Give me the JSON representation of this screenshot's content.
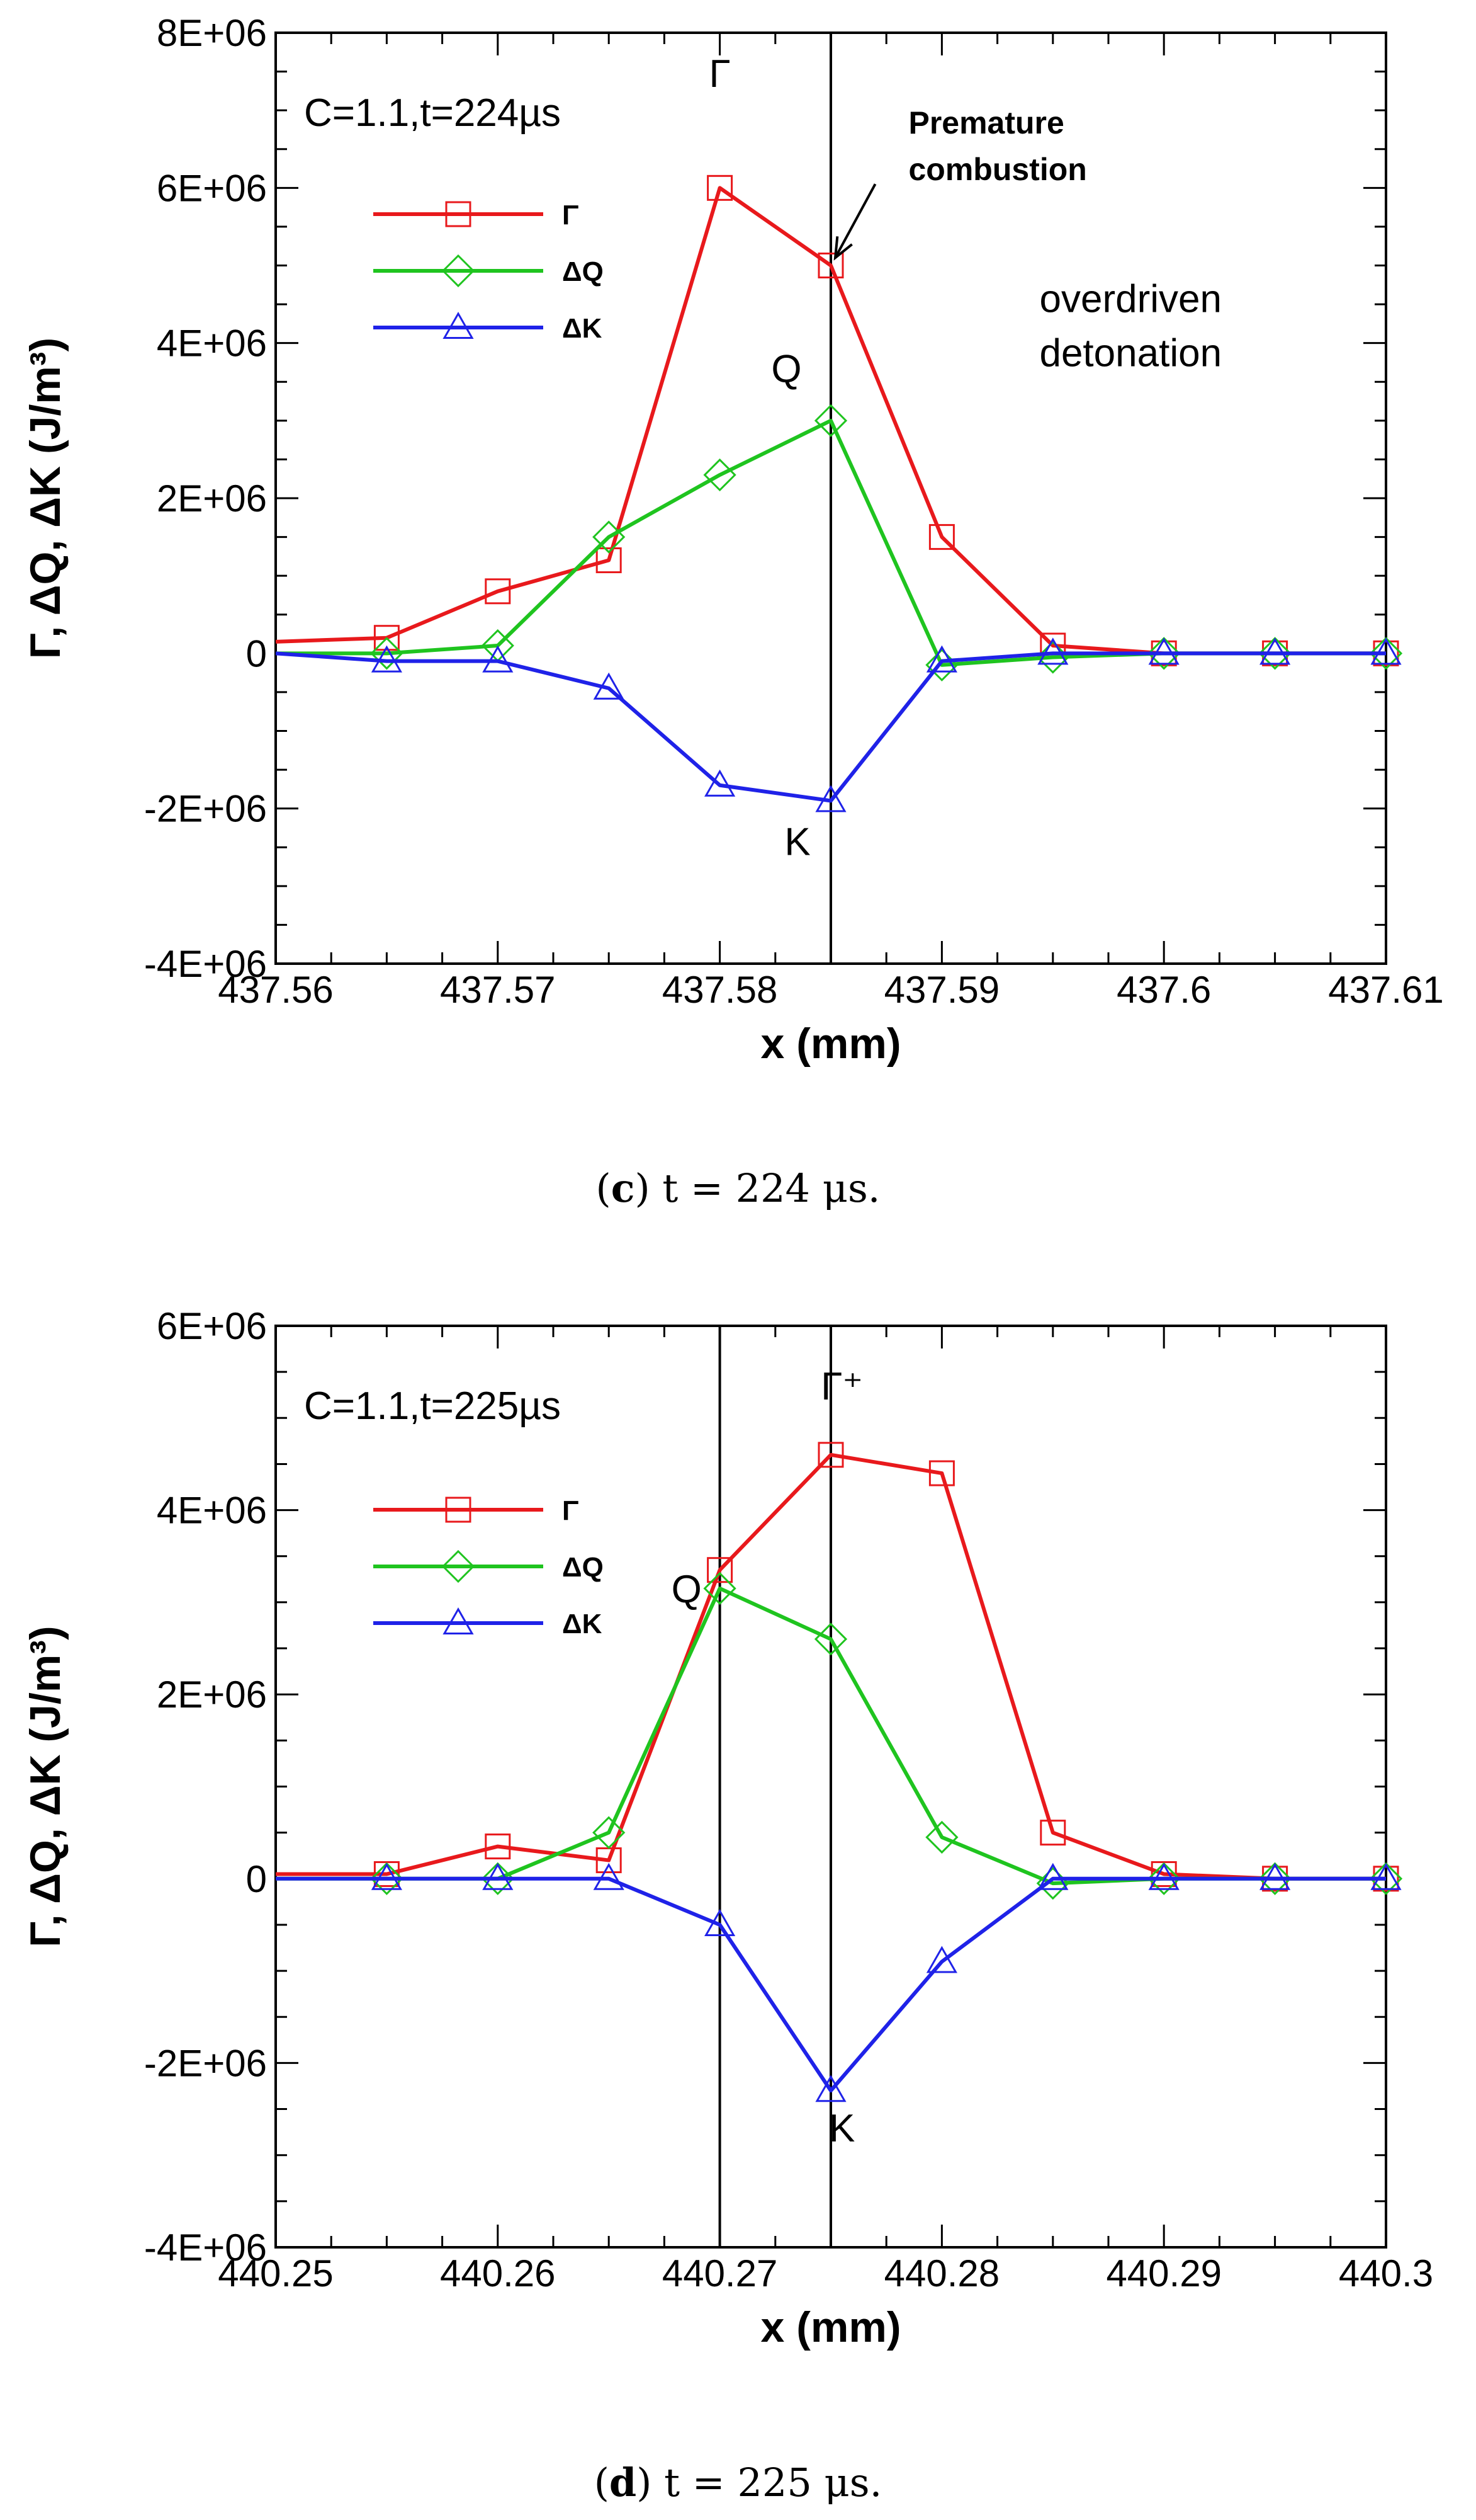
{
  "chart_data": [
    {
      "type": "line",
      "panel_id": "c",
      "title": "C=1.1,t=224µs",
      "xlabel": "x (mm)",
      "ylabel": "Γ, ΔQ, ΔK (J/m³)",
      "xlim": [
        437.56,
        437.61
      ],
      "ylim": [
        -4000000,
        8000000
      ],
      "x_ticks": [
        437.56,
        437.57,
        437.58,
        437.59,
        437.6,
        437.61
      ],
      "x_tick_labels": [
        "437.56",
        "437.57",
        "437.58",
        "437.59",
        "437.6",
        "437.61"
      ],
      "y_ticks": [
        -4000000,
        -2000000,
        0,
        2000000,
        4000000,
        6000000,
        8000000
      ],
      "y_tick_labels": [
        "-4E+06",
        "-2E+06",
        "0",
        "2E+06",
        "4E+06",
        "6E+06",
        "8E+06"
      ],
      "grid": false,
      "legend_position": "upper-left",
      "series": [
        {
          "name": "Γ",
          "color": "#e8191c",
          "marker": "square",
          "x": [
            437.56,
            437.565,
            437.57,
            437.575,
            437.58,
            437.585,
            437.59,
            437.595,
            437.6,
            437.605,
            437.61
          ],
          "values": [
            150000,
            200000,
            800000,
            1200000,
            6000000,
            5000000,
            1500000,
            100000,
            0,
            0,
            0
          ]
        },
        {
          "name": "ΔQ",
          "color": "#1fc41f",
          "marker": "diamond",
          "x": [
            437.56,
            437.565,
            437.57,
            437.575,
            437.58,
            437.585,
            437.59,
            437.595,
            437.6,
            437.605,
            437.61
          ],
          "values": [
            0,
            0,
            100000,
            1500000,
            2300000,
            3000000,
            -150000,
            -50000,
            0,
            0,
            0
          ]
        },
        {
          "name": "ΔK",
          "color": "#1f22e8",
          "marker": "triangle",
          "x": [
            437.56,
            437.565,
            437.57,
            437.575,
            437.58,
            437.585,
            437.59,
            437.595,
            437.6,
            437.605,
            437.61
          ],
          "values": [
            0,
            -100000,
            -100000,
            -450000,
            -1700000,
            -1900000,
            -100000,
            0,
            0,
            0,
            0
          ]
        }
      ],
      "vertical_lines": [
        437.585
      ],
      "annotations": [
        {
          "text": "Γ",
          "kind": "curve-label",
          "x": 437.58,
          "y": 7300000
        },
        {
          "text": "Q",
          "kind": "curve-label",
          "x": 437.583,
          "y": 3500000
        },
        {
          "text": "K",
          "kind": "curve-label",
          "x": 437.5835,
          "y": -2600000
        },
        {
          "text": "Premature",
          "kind": "bold-note",
          "x": 437.5885,
          "y": 6700000
        },
        {
          "text": "combustion",
          "kind": "bold-note",
          "x": 437.5885,
          "y": 6100000
        },
        {
          "text": "overdriven",
          "kind": "note",
          "x": 437.5985,
          "y": 4400000
        },
        {
          "text": "detonation",
          "kind": "note",
          "x": 437.5985,
          "y": 3700000
        }
      ],
      "arrow": {
        "from": [
          437.587,
          6050000
        ],
        "to": [
          437.5852,
          5100000
        ]
      },
      "caption": {
        "label": "c",
        "text": " t = 224 μs."
      }
    },
    {
      "type": "line",
      "panel_id": "d",
      "title": "C=1.1,t=225µs",
      "xlabel": "x (mm)",
      "ylabel": "Γ, ΔQ, ΔK (J/m³)",
      "xlim": [
        440.25,
        440.3
      ],
      "ylim": [
        -4000000,
        6000000
      ],
      "x_ticks": [
        440.25,
        440.26,
        440.27,
        440.28,
        440.29,
        440.3
      ],
      "x_tick_labels": [
        "440.25",
        "440.26",
        "440.27",
        "440.28",
        "440.29",
        "440.3"
      ],
      "y_ticks": [
        -4000000,
        -2000000,
        0,
        2000000,
        4000000,
        6000000
      ],
      "y_tick_labels": [
        "-4E+06",
        "-2E+06",
        "0",
        "2E+06",
        "4E+06",
        "6E+06"
      ],
      "grid": false,
      "legend_position": "upper-left",
      "series": [
        {
          "name": "Γ",
          "color": "#e8191c",
          "marker": "square",
          "x": [
            440.25,
            440.255,
            440.26,
            440.265,
            440.27,
            440.275,
            440.28,
            440.285,
            440.29,
            440.295,
            440.3
          ],
          "values": [
            50000,
            50000,
            350000,
            200000,
            3350000,
            4600000,
            4400000,
            500000,
            50000,
            0,
            0
          ]
        },
        {
          "name": "ΔQ",
          "color": "#1fc41f",
          "marker": "diamond",
          "x": [
            440.25,
            440.255,
            440.26,
            440.265,
            440.27,
            440.275,
            440.28,
            440.285,
            440.29,
            440.295,
            440.3
          ],
          "values": [
            0,
            0,
            0,
            500000,
            3150000,
            2600000,
            450000,
            -50000,
            0,
            0,
            0
          ]
        },
        {
          "name": "ΔK",
          "color": "#1f22e8",
          "marker": "triangle",
          "x": [
            440.25,
            440.255,
            440.26,
            440.265,
            440.27,
            440.275,
            440.28,
            440.285,
            440.29,
            440.295,
            440.3
          ],
          "values": [
            0,
            0,
            0,
            0,
            -500000,
            -2300000,
            -900000,
            0,
            0,
            0,
            0
          ]
        }
      ],
      "vertical_lines": [
        440.27,
        440.275
      ],
      "annotations": [
        {
          "text": "Γ⁺",
          "kind": "curve-label",
          "x": 440.2755,
          "y": 5200000
        },
        {
          "text": "Q",
          "kind": "curve-label",
          "x": 440.2685,
          "y": 3000000
        },
        {
          "text": "K",
          "kind": "curve-label",
          "x": 440.2755,
          "y": -2850000
        }
      ],
      "caption": {
        "label": "d",
        "text": " t = 225 μs."
      }
    }
  ]
}
